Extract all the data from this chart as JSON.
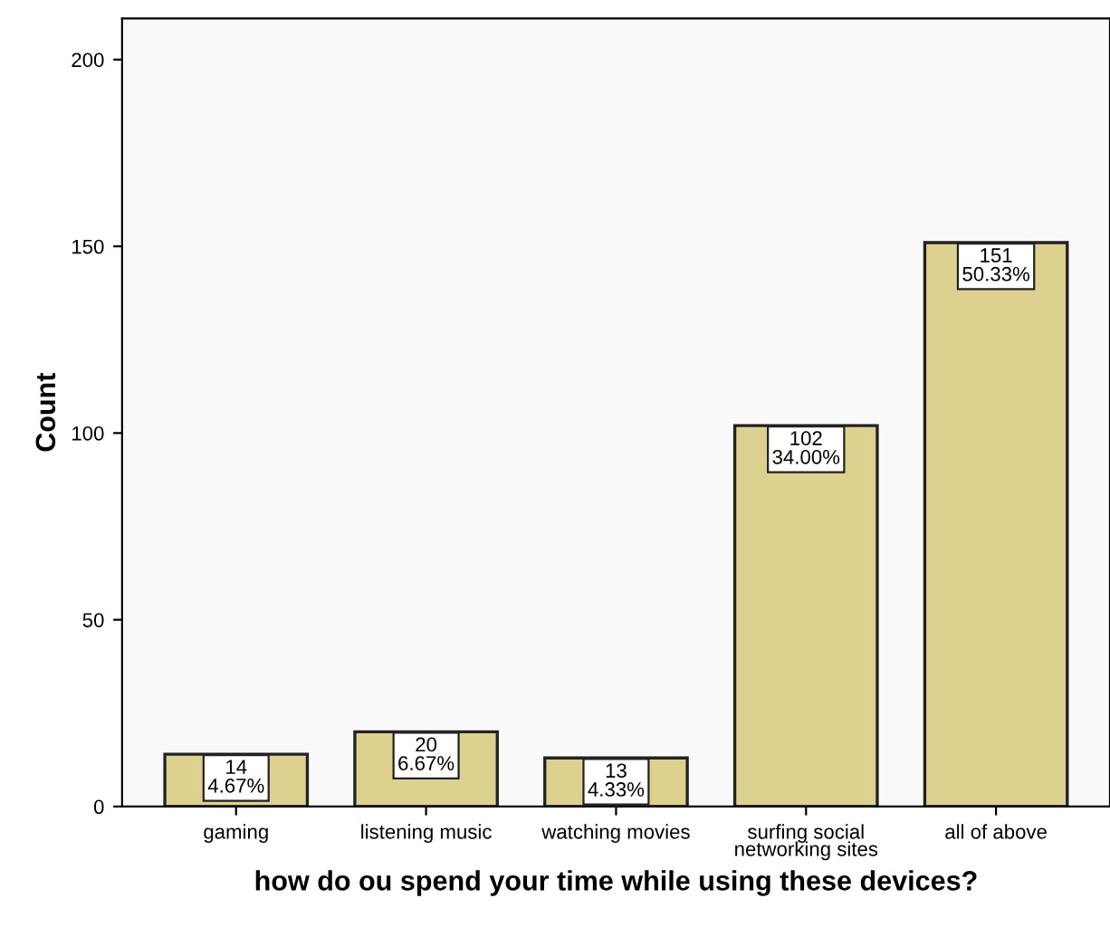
{
  "chart_data": {
    "type": "bar",
    "xlabel": "how do ou spend your time while using these devices?",
    "ylabel": "Count",
    "categories": [
      "gaming",
      "listening music",
      "watching movies",
      "surfing social\nnetworking sites",
      "all of above"
    ],
    "values": [
      14,
      20,
      13,
      102,
      151
    ],
    "value_labels": [
      "14\n4.67%",
      "20\n6.67%",
      "13\n4.33%",
      "102\n34.00%",
      "151\n50.33%"
    ],
    "color": "#ddd18f",
    "ylim": [
      0,
      211
    ],
    "yticks": [
      0,
      50,
      100,
      150,
      200
    ],
    "grid": false,
    "legend": false
  }
}
